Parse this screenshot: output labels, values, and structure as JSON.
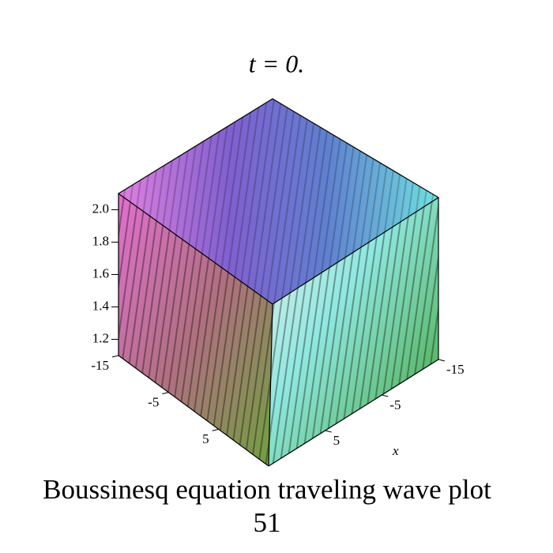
{
  "chart_data": {
    "type": "surface",
    "title": "t = 0.",
    "caption": [
      "Boussinesq equation  traveling wave plot",
      "51"
    ],
    "zlim": [
      1.1,
      2.1
    ],
    "zticks": [
      1.2,
      1.4,
      1.6,
      1.8,
      {
        "value": 2.0,
        "label": "2.0"
      }
    ],
    "ylim": [
      -15,
      15
    ],
    "yticks": [
      -15,
      -5,
      5
    ],
    "xlim": [
      -15,
      15
    ],
    "xticks": [
      -15,
      -5,
      5
    ],
    "xlabel": "x"
  }
}
